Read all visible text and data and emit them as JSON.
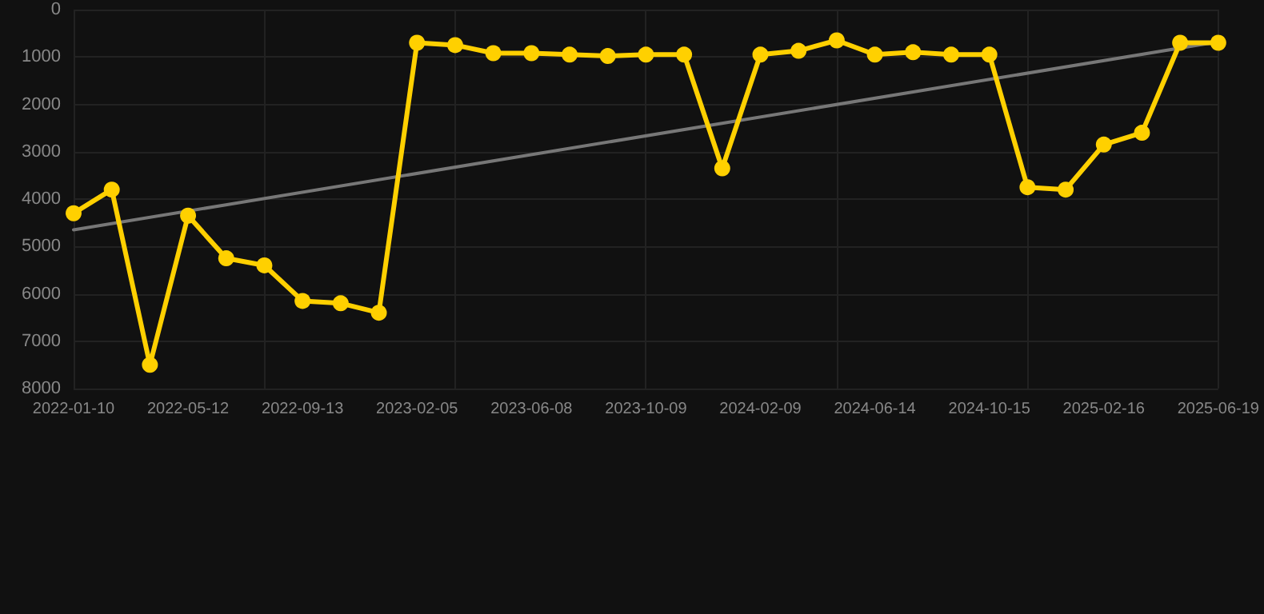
{
  "chart_data": {
    "type": "line",
    "categories": [
      "2022-01-10",
      null,
      null,
      "2022-05-12",
      null,
      null,
      "2022-09-13",
      null,
      null,
      "2023-02-05",
      null,
      null,
      "2023-06-08",
      null,
      null,
      "2023-10-09",
      null,
      null,
      "2024-02-09",
      null,
      null,
      "2024-06-14",
      null,
      null,
      "2024-10-15",
      null,
      null,
      "2025-02-16",
      null,
      null,
      "2025-06-19"
    ],
    "series": [
      {
        "color": "#ffd000",
        "values": [
          4300,
          3800,
          7500,
          4350,
          5250,
          5400,
          6150,
          6200,
          6400,
          700,
          750,
          920,
          920,
          950,
          980,
          950,
          950,
          3350,
          950,
          870,
          650,
          950,
          900,
          950,
          950,
          3750,
          3800,
          2850,
          2600,
          700,
          700
        ]
      },
      {
        "color": "#777777",
        "values": [
          4650,
          null,
          null,
          null,
          null,
          null,
          null,
          null,
          null,
          null,
          null,
          null,
          null,
          null,
          null,
          null,
          null,
          null,
          null,
          null,
          null,
          null,
          null,
          null,
          null,
          null,
          null,
          null,
          null,
          null,
          680
        ],
        "marker": "none"
      }
    ],
    "ylim": [
      8000,
      0
    ],
    "yticks": [
      0,
      1000,
      2000,
      3000,
      4000,
      5000,
      6000,
      7000,
      8000
    ],
    "grid": true,
    "marker": "circle",
    "line_style": "solid"
  }
}
